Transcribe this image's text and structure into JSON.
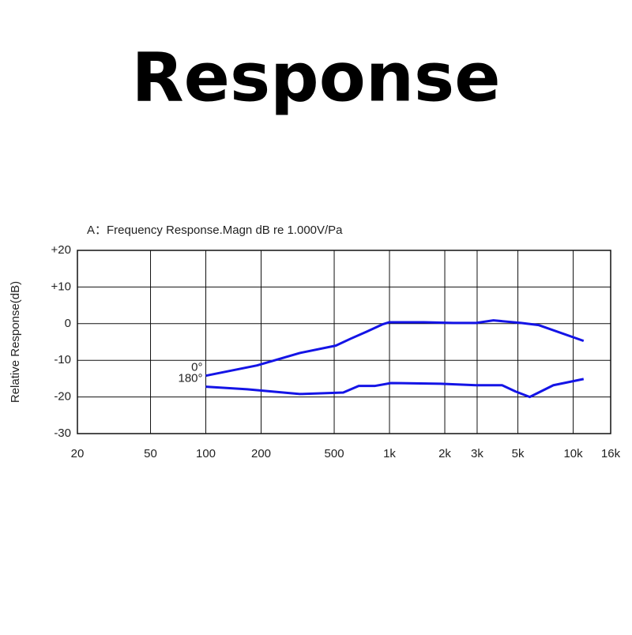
{
  "heading": "Response",
  "chart_data": {
    "type": "line",
    "title": "A：Frequency Response.Magn  dB re 1.000V/Pa",
    "ylabel": "Relative Response(dB)",
    "xscale": "log",
    "grid": true,
    "xlim": [
      20,
      16000
    ],
    "ylim": [
      -30,
      20
    ],
    "xticks": [
      20,
      50,
      100,
      200,
      500,
      {
        "value": 1000,
        "label": "1k"
      },
      {
        "value": 2000,
        "label": "2k"
      },
      {
        "value": 3000,
        "label": "3k"
      },
      {
        "value": 5000,
        "label": "5k"
      },
      {
        "value": 10000,
        "label": "10k"
      },
      {
        "value": 16000,
        "label": "16k"
      }
    ],
    "yticks": [
      {
        "value": 20,
        "label": "+20"
      },
      {
        "value": 10,
        "label": "+10"
      },
      0,
      -10,
      -20,
      -30
    ],
    "series": [
      {
        "name": "0°",
        "color": "#1414e6",
        "x": [
          100,
          190,
          325,
          510,
          615,
          750,
          915,
          1000,
          1540,
          2220,
          2960,
          3680,
          5200,
          6500,
          11400
        ],
        "values": [
          -14.2,
          -11.4,
          -8,
          -6,
          -4.1,
          -2.2,
          -0.2,
          0.4,
          0.4,
          0.2,
          0.2,
          0.9,
          0.2,
          -0.4,
          -4.7
        ]
      },
      {
        "name": "180°",
        "color": "#1414e6",
        "x": [
          100,
          168,
          325,
          560,
          680,
          830,
          1020,
          1900,
          2960,
          4100,
          4850,
          5800,
          7800,
          11400
        ],
        "values": [
          -17.2,
          -17.9,
          -19.2,
          -18.8,
          -17,
          -17,
          -16.2,
          -16.4,
          -16.8,
          -16.8,
          -18.5,
          -20,
          -16.8,
          -15.1
        ]
      }
    ]
  }
}
